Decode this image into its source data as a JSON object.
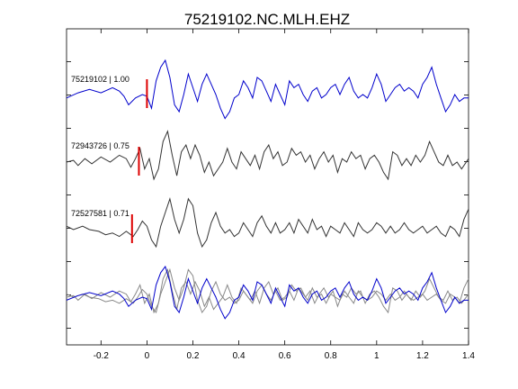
{
  "chart_data": {
    "type": "line",
    "title": "75219102.NC.MLH.EHZ",
    "xlabel": "",
    "ylabel": "",
    "xlim": [
      -0.35,
      1.4
    ],
    "x_ticks": [
      -0.2,
      0,
      0.2,
      0.4,
      0.6,
      0.8,
      1,
      1.2,
      1.4
    ],
    "x_tick_labels": [
      "-0.2",
      "0",
      "0.2",
      "0.4",
      "0.6",
      "0.8",
      "1",
      "1.2",
      "1.4"
    ],
    "grid": false,
    "colors": {
      "reference": "#0000cc",
      "other": "#333333",
      "overlay_other": "#888888",
      "pick": "#dd0000",
      "axes": "#000000"
    },
    "series": [
      {
        "name": "75219102 | 1.00",
        "pick_time": 0.0,
        "role": "reference",
        "points": [
          [
            -0.35,
            -0.1
          ],
          [
            -0.3,
            0.05
          ],
          [
            -0.25,
            0.15
          ],
          [
            -0.2,
            0.05
          ],
          [
            -0.15,
            0.2
          ],
          [
            -0.12,
            0.1
          ],
          [
            -0.1,
            -0.05
          ],
          [
            -0.08,
            -0.3
          ],
          [
            -0.05,
            -0.1
          ],
          [
            -0.02,
            0.0
          ],
          [
            0.0,
            -0.05
          ],
          [
            0.02,
            -0.4
          ],
          [
            0.04,
            0.4
          ],
          [
            0.06,
            0.8
          ],
          [
            0.08,
            1.0
          ],
          [
            0.1,
            0.5
          ],
          [
            0.12,
            -0.3
          ],
          [
            0.14,
            -0.5
          ],
          [
            0.16,
            0.0
          ],
          [
            0.18,
            0.6
          ],
          [
            0.2,
            0.2
          ],
          [
            0.22,
            -0.2
          ],
          [
            0.24,
            0.3
          ],
          [
            0.26,
            0.6
          ],
          [
            0.28,
            0.3
          ],
          [
            0.3,
            0.0
          ],
          [
            0.32,
            -0.4
          ],
          [
            0.34,
            -0.7
          ],
          [
            0.36,
            -0.5
          ],
          [
            0.38,
            -0.1
          ],
          [
            0.4,
            0.0
          ],
          [
            0.42,
            0.4
          ],
          [
            0.44,
            0.2
          ],
          [
            0.46,
            -0.1
          ],
          [
            0.48,
            0.5
          ],
          [
            0.5,
            0.4
          ],
          [
            0.52,
            0.1
          ],
          [
            0.54,
            -0.2
          ],
          [
            0.56,
            0.3
          ],
          [
            0.58,
            0.0
          ],
          [
            0.6,
            -0.3
          ],
          [
            0.62,
            0.4
          ],
          [
            0.64,
            0.2
          ],
          [
            0.66,
            0.3
          ],
          [
            0.68,
            0.0
          ],
          [
            0.7,
            -0.2
          ],
          [
            0.72,
            0.1
          ],
          [
            0.74,
            0.2
          ],
          [
            0.76,
            -0.1
          ],
          [
            0.78,
            0.0
          ],
          [
            0.8,
            0.2
          ],
          [
            0.82,
            0.3
          ],
          [
            0.84,
            0.0
          ],
          [
            0.86,
            0.3
          ],
          [
            0.88,
            0.5
          ],
          [
            0.9,
            0.1
          ],
          [
            0.92,
            -0.1
          ],
          [
            0.94,
            0.0
          ],
          [
            0.96,
            -0.1
          ],
          [
            0.98,
            0.2
          ],
          [
            1.0,
            0.6
          ],
          [
            1.02,
            0.3
          ],
          [
            1.04,
            -0.2
          ],
          [
            1.06,
            0.0
          ],
          [
            1.08,
            0.2
          ],
          [
            1.1,
            0.3
          ],
          [
            1.12,
            0.1
          ],
          [
            1.14,
            0.2
          ],
          [
            1.16,
            0.1
          ],
          [
            1.18,
            -0.1
          ],
          [
            1.2,
            0.3
          ],
          [
            1.22,
            0.5
          ],
          [
            1.24,
            0.8
          ],
          [
            1.26,
            0.3
          ],
          [
            1.28,
            -0.1
          ],
          [
            1.3,
            -0.5
          ],
          [
            1.32,
            -0.3
          ],
          [
            1.34,
            0.0
          ],
          [
            1.36,
            -0.2
          ],
          [
            1.38,
            -0.1
          ],
          [
            1.4,
            -0.1
          ]
        ]
      },
      {
        "name": "72943726 | 0.75",
        "pick_time": -0.035,
        "role": "other",
        "points": [
          [
            -0.35,
            0.0
          ],
          [
            -0.32,
            0.05
          ],
          [
            -0.3,
            -0.1
          ],
          [
            -0.27,
            0.1
          ],
          [
            -0.24,
            -0.05
          ],
          [
            -0.2,
            0.15
          ],
          [
            -0.16,
            0.0
          ],
          [
            -0.12,
            0.2
          ],
          [
            -0.09,
            0.1
          ],
          [
            -0.07,
            -0.15
          ],
          [
            -0.05,
            0.1
          ],
          [
            -0.03,
            0.4
          ],
          [
            -0.01,
            -0.2
          ],
          [
            0.01,
            0.1
          ],
          [
            0.03,
            -0.5
          ],
          [
            0.05,
            -0.2
          ],
          [
            0.07,
            0.6
          ],
          [
            0.09,
            0.9
          ],
          [
            0.11,
            0.2
          ],
          [
            0.13,
            -0.4
          ],
          [
            0.15,
            0.3
          ],
          [
            0.17,
            0.5
          ],
          [
            0.19,
            0.1
          ],
          [
            0.21,
            0.5
          ],
          [
            0.23,
            0.2
          ],
          [
            0.25,
            -0.3
          ],
          [
            0.27,
            0.0
          ],
          [
            0.29,
            -0.4
          ],
          [
            0.31,
            -0.2
          ],
          [
            0.33,
            0.0
          ],
          [
            0.35,
            0.4
          ],
          [
            0.37,
            0.0
          ],
          [
            0.39,
            -0.2
          ],
          [
            0.41,
            0.3
          ],
          [
            0.43,
            0.1
          ],
          [
            0.45,
            -0.1
          ],
          [
            0.47,
            0.2
          ],
          [
            0.49,
            -0.2
          ],
          [
            0.51,
            0.3
          ],
          [
            0.53,
            0.5
          ],
          [
            0.55,
            0.1
          ],
          [
            0.57,
            0.3
          ],
          [
            0.59,
            -0.1
          ],
          [
            0.61,
            0.0
          ],
          [
            0.63,
            0.4
          ],
          [
            0.65,
            0.2
          ],
          [
            0.67,
            0.3
          ],
          [
            0.69,
            0.0
          ],
          [
            0.71,
            0.2
          ],
          [
            0.73,
            -0.2
          ],
          [
            0.75,
            0.1
          ],
          [
            0.77,
            0.3
          ],
          [
            0.79,
            0.0
          ],
          [
            0.81,
            0.2
          ],
          [
            0.83,
            -0.3
          ],
          [
            0.85,
            0.1
          ],
          [
            0.87,
            0.0
          ],
          [
            0.89,
            0.3
          ],
          [
            0.91,
            0.1
          ],
          [
            0.93,
            0.2
          ],
          [
            0.95,
            -0.2
          ],
          [
            0.97,
            0.1
          ],
          [
            0.99,
            0.2
          ],
          [
            1.01,
            0.0
          ],
          [
            1.03,
            -0.3
          ],
          [
            1.05,
            -0.5
          ],
          [
            1.07,
            0.3
          ],
          [
            1.09,
            0.2
          ],
          [
            1.11,
            -0.1
          ],
          [
            1.13,
            0.1
          ],
          [
            1.15,
            -0.1
          ],
          [
            1.17,
            0.2
          ],
          [
            1.19,
            0.0
          ],
          [
            1.21,
            0.2
          ],
          [
            1.23,
            0.6
          ],
          [
            1.25,
            0.3
          ],
          [
            1.27,
            0.0
          ],
          [
            1.29,
            -0.1
          ],
          [
            1.31,
            0.2
          ],
          [
            1.33,
            -0.1
          ],
          [
            1.35,
            0.0
          ],
          [
            1.37,
            -0.2
          ],
          [
            1.4,
            0.1
          ]
        ]
      },
      {
        "name": "72527581 | 0.71",
        "pick_time": -0.065,
        "role": "other",
        "points": [
          [
            -0.35,
            0.1
          ],
          [
            -0.32,
            0.0
          ],
          [
            -0.28,
            0.1
          ],
          [
            -0.25,
            0.0
          ],
          [
            -0.21,
            -0.05
          ],
          [
            -0.18,
            -0.15
          ],
          [
            -0.15,
            -0.1
          ],
          [
            -0.12,
            -0.2
          ],
          [
            -0.09,
            -0.05
          ],
          [
            -0.06,
            -0.2
          ],
          [
            -0.04,
            0.0
          ],
          [
            -0.02,
            0.25
          ],
          [
            0.0,
            0.1
          ],
          [
            0.02,
            -0.3
          ],
          [
            0.04,
            -0.5
          ],
          [
            0.06,
            0.1
          ],
          [
            0.08,
            0.5
          ],
          [
            0.1,
            0.9
          ],
          [
            0.12,
            0.3
          ],
          [
            0.14,
            -0.1
          ],
          [
            0.16,
            0.3
          ],
          [
            0.18,
            0.9
          ],
          [
            0.2,
            0.7
          ],
          [
            0.22,
            -0.1
          ],
          [
            0.24,
            -0.5
          ],
          [
            0.26,
            -0.3
          ],
          [
            0.28,
            0.2
          ],
          [
            0.3,
            0.5
          ],
          [
            0.32,
            0.1
          ],
          [
            0.34,
            -0.1
          ],
          [
            0.36,
            0.0
          ],
          [
            0.38,
            -0.2
          ],
          [
            0.4,
            -0.1
          ],
          [
            0.42,
            0.2
          ],
          [
            0.44,
            0.0
          ],
          [
            0.46,
            -0.2
          ],
          [
            0.48,
            0.2
          ],
          [
            0.5,
            0.4
          ],
          [
            0.52,
            0.1
          ],
          [
            0.54,
            -0.1
          ],
          [
            0.56,
            0.2
          ],
          [
            0.58,
            -0.1
          ],
          [
            0.6,
            0.0
          ],
          [
            0.62,
            0.2
          ],
          [
            0.64,
            -0.1
          ],
          [
            0.66,
            0.3
          ],
          [
            0.68,
            0.1
          ],
          [
            0.7,
            -0.1
          ],
          [
            0.72,
            0.3
          ],
          [
            0.74,
            0.0
          ],
          [
            0.76,
            0.1
          ],
          [
            0.78,
            -0.2
          ],
          [
            0.8,
            0.1
          ],
          [
            0.82,
            0.0
          ],
          [
            0.84,
            -0.1
          ],
          [
            0.86,
            0.2
          ],
          [
            0.88,
            0.0
          ],
          [
            0.9,
            -0.2
          ],
          [
            0.92,
            0.2
          ],
          [
            0.94,
            0.0
          ],
          [
            0.96,
            -0.1
          ],
          [
            0.98,
            0.0
          ],
          [
            1.0,
            0.2
          ],
          [
            1.02,
            0.1
          ],
          [
            1.04,
            -0.1
          ],
          [
            1.06,
            0.1
          ],
          [
            1.08,
            -0.1
          ],
          [
            1.1,
            0.0
          ],
          [
            1.12,
            0.2
          ],
          [
            1.14,
            0.0
          ],
          [
            1.16,
            -0.1
          ],
          [
            1.18,
            0.0
          ],
          [
            1.2,
            0.1
          ],
          [
            1.22,
            -0.1
          ],
          [
            1.24,
            0.0
          ],
          [
            1.26,
            0.1
          ],
          [
            1.28,
            -0.1
          ],
          [
            1.3,
            -0.2
          ],
          [
            1.32,
            0.1
          ],
          [
            1.34,
            0.0
          ],
          [
            1.36,
            -0.2
          ],
          [
            1.38,
            0.3
          ],
          [
            1.4,
            0.6
          ]
        ]
      }
    ]
  }
}
